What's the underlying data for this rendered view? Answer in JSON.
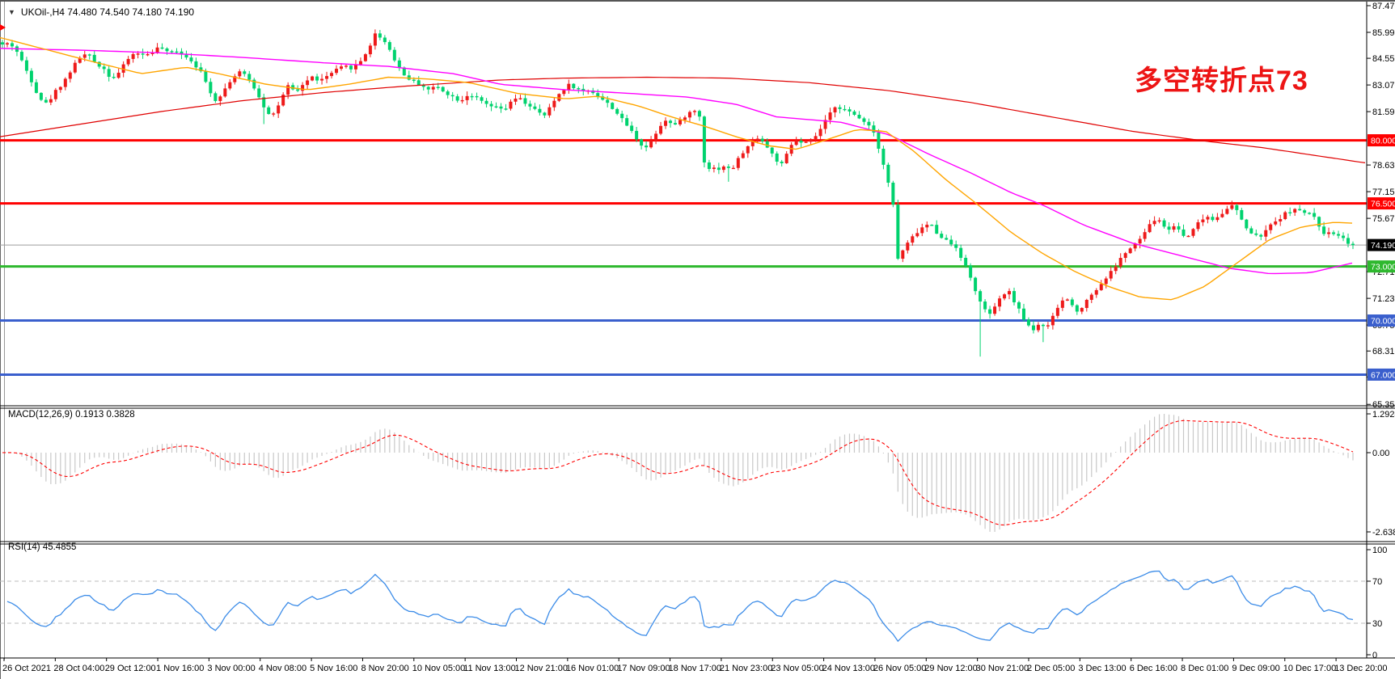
{
  "window": {
    "collapse_icon": "▼",
    "title": "UKOil-,H4  74.480 74.540 74.180 74.190",
    "annotation": {
      "text": "多空转折点73",
      "color": "#ED1515"
    }
  },
  "indicators_labels": {
    "macd": "MACD(12,26,9) 0.1913 0.3828",
    "rsi": "RSI(14) 45.4855"
  },
  "chart_data": {
    "type": "candlestick",
    "symbol": "UKOil-",
    "timeframe": "H4",
    "ohlc": {
      "open": 74.48,
      "high": 74.54,
      "low": 74.18,
      "close": 74.19
    },
    "colors": {
      "candle_up": "#EE1A1A",
      "candle_down": "#00D26E",
      "ma_fast": "#FFA500",
      "ma_mid": "#FF00FF",
      "ma_slow": "#E00000",
      "hline_red": "#FF0000",
      "hline_green": "#2EB82E",
      "hline_blue": "#3A5FCD",
      "current_line": "#9C9C9C",
      "current_badge_bg": "#000000",
      "macd_hist": "#C8C8C8",
      "macd_signal": "#FF0000",
      "rsi_line": "#3C8CE8",
      "rsi_levels": "#BBBBBB",
      "axis_text": "#000000"
    },
    "price_axis_ticks": [
      87.47,
      85.99,
      84.55,
      83.07,
      81.59,
      78.63,
      77.15,
      75.67,
      72.71,
      71.23,
      69.75,
      68.31,
      66.87,
      65.35
    ],
    "hlines": [
      {
        "price": 80.0,
        "label": "80.000",
        "color": "#FF0000",
        "width": 3
      },
      {
        "price": 76.5,
        "label": "76.500",
        "color": "#FF0000",
        "width": 3
      },
      {
        "price": 73.0,
        "label": "73.000",
        "color": "#2EB82E",
        "width": 3
      },
      {
        "price": 70.0,
        "label": "70.000",
        "color": "#3A5FCD",
        "width": 3
      },
      {
        "price": 67.0,
        "label": "67.000",
        "color": "#3A5FCD",
        "width": 3
      }
    ],
    "current_price": {
      "value": 74.19,
      "label": "74.190"
    },
    "x_labels": [
      "26 Oct 2021",
      "28 Oct 04:00",
      "29 Oct 12:00",
      "1 Nov 16:00",
      "3 Nov 00:00",
      "4 Nov 08:00",
      "5 Nov 16:00",
      "8 Nov 20:00",
      "10 Nov 05:00",
      "11 Nov 13:00",
      "12 Nov 21:00",
      "16 Nov 01:00",
      "17 Nov 09:00",
      "18 Nov 17:00",
      "21 Nov 23:00",
      "23 Nov 05:00",
      "24 Nov 13:00",
      "26 Nov 05:00",
      "29 Nov 12:00",
      "30 Nov 21:00",
      "2 Dec 05:00",
      "3 Dec 13:00",
      "6 Dec 16:00",
      "8 Dec 01:00",
      "9 Dec 09:00",
      "10 Dec 17:00",
      "13 Dec 20:00"
    ],
    "close_path": [
      [
        5,
        85.3
      ],
      [
        12,
        85.4
      ],
      [
        20,
        85.0
      ],
      [
        28,
        84.3
      ],
      [
        38,
        83.4
      ],
      [
        48,
        82.4
      ],
      [
        58,
        82.0
      ],
      [
        68,
        82.7
      ],
      [
        78,
        83.2
      ],
      [
        88,
        83.9
      ],
      [
        98,
        84.6
      ],
      [
        108,
        84.8
      ],
      [
        118,
        84.3
      ],
      [
        128,
        84.0
      ],
      [
        138,
        83.4
      ],
      [
        148,
        83.8
      ],
      [
        158,
        84.5
      ],
      [
        168,
        84.9
      ],
      [
        178,
        84.7
      ],
      [
        188,
        84.9
      ],
      [
        198,
        85.2
      ],
      [
        208,
        84.8
      ],
      [
        218,
        85.0
      ],
      [
        228,
        84.7
      ],
      [
        238,
        84.4
      ],
      [
        248,
        83.8
      ],
      [
        258,
        82.9
      ],
      [
        266,
        82.2
      ],
      [
        276,
        82.7
      ],
      [
        286,
        83.4
      ],
      [
        296,
        83.8
      ],
      [
        306,
        83.5
      ],
      [
        316,
        82.8
      ],
      [
        326,
        81.9
      ],
      [
        336,
        81.3
      ],
      [
        346,
        82.1
      ],
      [
        356,
        83.0
      ],
      [
        366,
        82.6
      ],
      [
        376,
        83.2
      ],
      [
        386,
        83.5
      ],
      [
        396,
        83.3
      ],
      [
        406,
        83.6
      ],
      [
        416,
        83.9
      ],
      [
        426,
        84.1
      ],
      [
        436,
        84.0
      ],
      [
        446,
        84.4
      ],
      [
        456,
        85.1
      ],
      [
        464,
        85.9
      ],
      [
        472,
        85.7
      ],
      [
        480,
        85.2
      ],
      [
        490,
        84.3
      ],
      [
        500,
        83.6
      ],
      [
        510,
        83.3
      ],
      [
        520,
        83.1
      ],
      [
        530,
        82.8
      ],
      [
        540,
        83.0
      ],
      [
        550,
        82.7
      ],
      [
        560,
        82.4
      ],
      [
        570,
        82.2
      ],
      [
        580,
        82.6
      ],
      [
        590,
        82.3
      ],
      [
        600,
        82.0
      ],
      [
        612,
        81.8
      ],
      [
        624,
        81.7
      ],
      [
        632,
        82.1
      ],
      [
        640,
        82.4
      ],
      [
        648,
        82.1
      ],
      [
        656,
        81.9
      ],
      [
        664,
        81.6
      ],
      [
        672,
        81.3
      ],
      [
        680,
        81.8
      ],
      [
        688,
        82.4
      ],
      [
        696,
        82.8
      ],
      [
        704,
        83.1
      ],
      [
        712,
        82.9
      ],
      [
        720,
        82.7
      ],
      [
        728,
        82.8
      ],
      [
        736,
        82.6
      ],
      [
        744,
        82.3
      ],
      [
        752,
        82.0
      ],
      [
        760,
        81.7
      ],
      [
        768,
        81.2
      ],
      [
        776,
        80.8
      ],
      [
        784,
        80.3
      ],
      [
        792,
        79.8
      ],
      [
        800,
        79.6
      ],
      [
        808,
        80.2
      ],
      [
        816,
        80.8
      ],
      [
        824,
        81.2
      ],
      [
        832,
        80.8
      ],
      [
        840,
        81.0
      ],
      [
        848,
        81.4
      ],
      [
        856,
        81.6
      ],
      [
        864,
        81.7
      ],
      [
        872,
        78.4
      ],
      [
        880,
        78.5
      ],
      [
        888,
        78.4
      ],
      [
        896,
        78.6
      ],
      [
        904,
        78.3
      ],
      [
        912,
        78.9
      ],
      [
        920,
        79.4
      ],
      [
        928,
        79.8
      ],
      [
        936,
        80.2
      ],
      [
        944,
        79.9
      ],
      [
        952,
        79.4
      ],
      [
        960,
        78.9
      ],
      [
        968,
        78.6
      ],
      [
        976,
        79.6
      ],
      [
        984,
        80.0
      ],
      [
        992,
        79.8
      ],
      [
        1000,
        79.9
      ],
      [
        1008,
        80.2
      ],
      [
        1016,
        80.7
      ],
      [
        1024,
        81.3
      ],
      [
        1032,
        81.9
      ],
      [
        1040,
        81.8
      ],
      [
        1048,
        81.6
      ],
      [
        1056,
        81.4
      ],
      [
        1064,
        81.2
      ],
      [
        1072,
        81.0
      ],
      [
        1080,
        80.5
      ],
      [
        1088,
        79.4
      ],
      [
        1096,
        78.1
      ],
      [
        1104,
        76.6
      ],
      [
        1110,
        73.4
      ],
      [
        1118,
        74.0
      ],
      [
        1126,
        74.5
      ],
      [
        1134,
        74.9
      ],
      [
        1142,
        75.2
      ],
      [
        1150,
        75.4
      ],
      [
        1158,
        74.9
      ],
      [
        1166,
        74.6
      ],
      [
        1174,
        74.3
      ],
      [
        1182,
        74.1
      ],
      [
        1190,
        73.4
      ],
      [
        1198,
        72.6
      ],
      [
        1206,
        71.7
      ],
      [
        1214,
        70.8
      ],
      [
        1222,
        70.3
      ],
      [
        1230,
        70.7
      ],
      [
        1238,
        71.3
      ],
      [
        1246,
        71.7
      ],
      [
        1254,
        71.1
      ],
      [
        1262,
        70.4
      ],
      [
        1270,
        69.8
      ],
      [
        1278,
        69.5
      ],
      [
        1286,
        69.9
      ],
      [
        1294,
        69.5
      ],
      [
        1302,
        70.2
      ],
      [
        1310,
        70.9
      ],
      [
        1318,
        71.3
      ],
      [
        1326,
        70.8
      ],
      [
        1334,
        70.5
      ],
      [
        1342,
        71.0
      ],
      [
        1350,
        71.5
      ],
      [
        1358,
        71.8
      ],
      [
        1366,
        72.3
      ],
      [
        1374,
        72.7
      ],
      [
        1382,
        73.2
      ],
      [
        1390,
        73.7
      ],
      [
        1398,
        74.0
      ],
      [
        1406,
        74.3
      ],
      [
        1414,
        74.8
      ],
      [
        1422,
        75.3
      ],
      [
        1430,
        75.7
      ],
      [
        1438,
        75.3
      ],
      [
        1446,
        75.0
      ],
      [
        1454,
        75.4
      ],
      [
        1460,
        74.8
      ],
      [
        1468,
        74.6
      ],
      [
        1476,
        75.2
      ],
      [
        1484,
        75.5
      ],
      [
        1492,
        75.8
      ],
      [
        1500,
        75.6
      ],
      [
        1508,
        75.9
      ],
      [
        1516,
        76.1
      ],
      [
        1524,
        76.4
      ],
      [
        1532,
        75.9
      ],
      [
        1540,
        75.2
      ],
      [
        1548,
        74.8
      ],
      [
        1556,
        74.6
      ],
      [
        1564,
        74.9
      ],
      [
        1572,
        75.3
      ],
      [
        1580,
        75.6
      ],
      [
        1588,
        75.9
      ],
      [
        1596,
        76.1
      ],
      [
        1604,
        76.2
      ],
      [
        1612,
        75.9
      ],
      [
        1620,
        76.0
      ],
      [
        1628,
        75.5
      ],
      [
        1636,
        74.9
      ],
      [
        1644,
        74.8
      ],
      [
        1652,
        74.9
      ],
      [
        1660,
        74.6
      ],
      [
        1668,
        74.3
      ],
      [
        1673,
        74.19
      ]
    ],
    "wick_extremes": [
      [
        464,
        86.05,
        "high"
      ],
      [
        326,
        80.9,
        "low"
      ],
      [
        902,
        77.7,
        "low"
      ],
      [
        1213,
        68.0,
        "low"
      ],
      [
        1291,
        68.8,
        "low"
      ],
      [
        1524,
        76.65,
        "high"
      ]
    ],
    "ma_fast_path": [
      [
        0,
        85.7
      ],
      [
        60,
        85.0
      ],
      [
        120,
        84.3
      ],
      [
        175,
        83.7
      ],
      [
        230,
        84.05
      ],
      [
        270,
        83.7
      ],
      [
        330,
        83.1
      ],
      [
        380,
        82.8
      ],
      [
        430,
        83.1
      ],
      [
        480,
        83.5
      ],
      [
        530,
        83.4
      ],
      [
        580,
        83.2
      ],
      [
        640,
        82.6
      ],
      [
        700,
        82.3
      ],
      [
        740,
        82.45
      ],
      [
        790,
        81.9
      ],
      [
        830,
        81.3
      ],
      [
        870,
        80.8
      ],
      [
        910,
        80.2
      ],
      [
        950,
        79.7
      ],
      [
        985,
        79.5
      ],
      [
        1020,
        80.0
      ],
      [
        1060,
        80.6
      ],
      [
        1095,
        80.5
      ],
      [
        1130,
        79.4
      ],
      [
        1170,
        77.8
      ],
      [
        1210,
        76.4
      ],
      [
        1250,
        74.9
      ],
      [
        1290,
        73.7
      ],
      [
        1330,
        72.7
      ],
      [
        1370,
        71.9
      ],
      [
        1410,
        71.3
      ],
      [
        1450,
        71.15
      ],
      [
        1490,
        71.9
      ],
      [
        1530,
        73.2
      ],
      [
        1570,
        74.5
      ],
      [
        1610,
        75.2
      ],
      [
        1650,
        75.45
      ],
      [
        1673,
        75.4
      ]
    ],
    "ma_mid_path": [
      [
        0,
        85.1
      ],
      [
        100,
        85.0
      ],
      [
        200,
        84.85
      ],
      [
        300,
        84.6
      ],
      [
        400,
        84.3
      ],
      [
        480,
        84.1
      ],
      [
        560,
        83.7
      ],
      [
        620,
        83.1
      ],
      [
        700,
        82.8
      ],
      [
        780,
        82.6
      ],
      [
        850,
        82.4
      ],
      [
        910,
        82.0
      ],
      [
        960,
        81.3
      ],
      [
        1040,
        81.0
      ],
      [
        1100,
        80.3
      ],
      [
        1150,
        79.2
      ],
      [
        1200,
        78.2
      ],
      [
        1250,
        77.1
      ],
      [
        1290,
        76.4
      ],
      [
        1340,
        75.3
      ],
      [
        1400,
        74.3
      ],
      [
        1460,
        73.6
      ],
      [
        1520,
        72.9
      ],
      [
        1570,
        72.6
      ],
      [
        1620,
        72.65
      ],
      [
        1673,
        73.2
      ]
    ],
    "ma_slow_path": [
      [
        0,
        80.2
      ],
      [
        100,
        80.9
      ],
      [
        200,
        81.6
      ],
      [
        300,
        82.2
      ],
      [
        400,
        82.65
      ],
      [
        500,
        83.0
      ],
      [
        620,
        83.35
      ],
      [
        700,
        83.45
      ],
      [
        800,
        83.5
      ],
      [
        900,
        83.45
      ],
      [
        1000,
        83.2
      ],
      [
        1100,
        82.75
      ],
      [
        1200,
        82.1
      ],
      [
        1300,
        81.3
      ],
      [
        1400,
        80.5
      ],
      [
        1500,
        79.9
      ],
      [
        1560,
        79.6
      ],
      [
        1620,
        79.2
      ],
      [
        1688,
        78.75
      ]
    ],
    "indicators": {
      "macd": {
        "label": "MACD(12,26,9) 0.1913 0.3828",
        "params": [
          12,
          26,
          9
        ],
        "value": 0.1913,
        "signal": 0.3828,
        "axis_labels": [
          "1.2924",
          "0.00",
          "-2.6386"
        ],
        "axis_max": 1.2924,
        "axis_min": -2.6386
      },
      "rsi": {
        "label": "RSI(14) 45.4855",
        "period": 14,
        "value": 45.4855,
        "levels": [
          70,
          30
        ],
        "axis_labels": [
          "100",
          "70",
          "30",
          "0"
        ]
      }
    }
  }
}
